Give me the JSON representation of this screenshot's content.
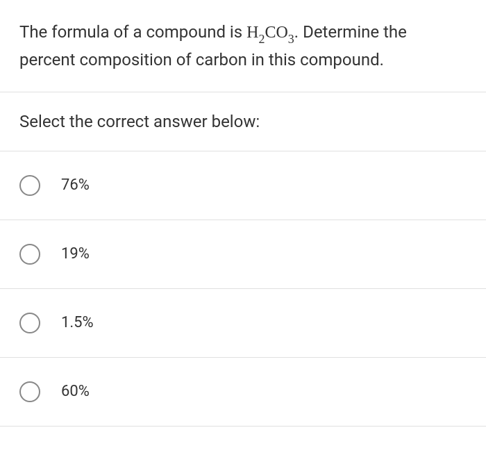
{
  "question": {
    "text_before": "The formula of a compound is ",
    "formula_h": "H",
    "formula_sub1": "2",
    "formula_co": "CO",
    "formula_sub2": "3",
    "text_after": ". Determine the percent composition of carbon in this compound."
  },
  "prompt": "Select the correct answer below:",
  "options": [
    {
      "label": "76%"
    },
    {
      "label": "19%"
    },
    {
      "label": "1.5%"
    },
    {
      "label": "60%"
    }
  ],
  "colors": {
    "background": "#ffffff",
    "text": "#333333",
    "border": "#e0e0e0",
    "radio_border": "#888888"
  },
  "typography": {
    "question_fontsize": 24,
    "option_fontsize": 22
  }
}
